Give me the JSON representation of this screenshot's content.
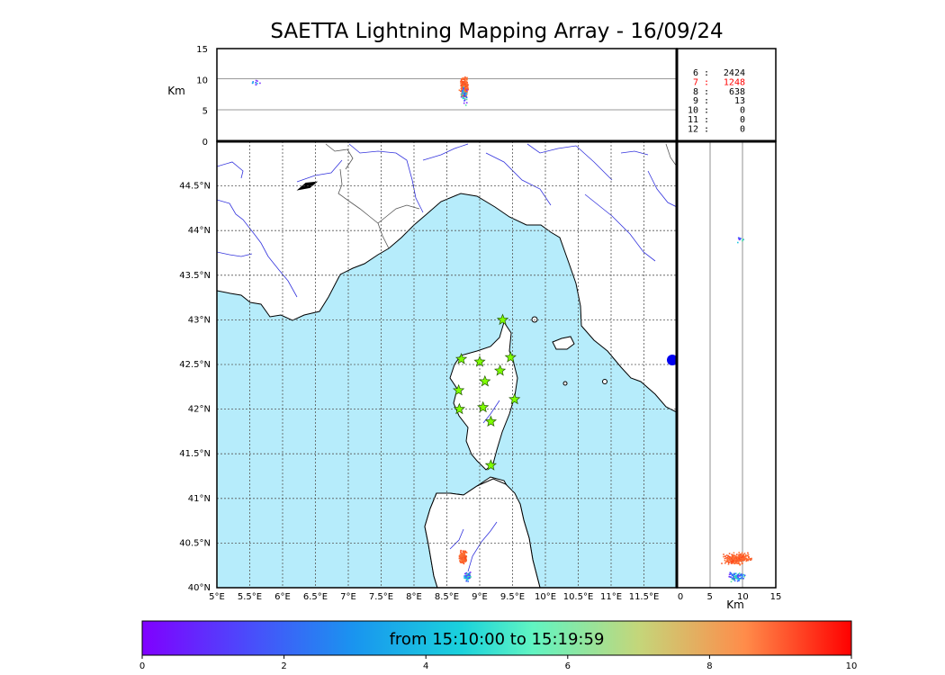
{
  "title": "SAETTA Lightning Mapping Array - 16/09/24",
  "colorbar": {
    "label": "from 15:10:00 to 15:19:59",
    "ticks": [
      "0",
      "2",
      "4",
      "6",
      "8",
      "10"
    ],
    "min": 0,
    "max": 10
  },
  "altitude_axis": {
    "unit": "Km",
    "ticks": [
      "0",
      "5",
      "10",
      "15"
    ]
  },
  "lon_ticks": [
    "5°E",
    "5.5°E",
    "6°E",
    "6.5°E",
    "7°E",
    "7.5°E",
    "8°E",
    "8.5°E",
    "9°E",
    "9.5°E",
    "10°E",
    "10.5°E",
    "11°E",
    "11.5°E"
  ],
  "lat_ticks": [
    "40°N",
    "40.5°N",
    "41°N",
    "41.5°N",
    "42°N",
    "42.5°N",
    "43°N",
    "43.5°N",
    "44°N",
    "44.5°N"
  ],
  "lon_range": [
    5,
    12
  ],
  "lat_range": [
    40,
    45
  ],
  "alt_range": [
    0,
    15
  ],
  "station_counts": [
    {
      "stations": "6",
      "count": "2424",
      "color": "#000000"
    },
    {
      "stations": "7",
      "count": "1248",
      "color": "#ff0000"
    },
    {
      "stations": "8",
      "count": "638",
      "color": "#000000"
    },
    {
      "stations": "9",
      "count": "13",
      "color": "#000000"
    },
    {
      "stations": "10",
      "count": "0",
      "color": "#000000"
    },
    {
      "stations": "11",
      "count": "0",
      "color": "#000000"
    },
    {
      "stations": "12",
      "count": "0",
      "color": "#000000"
    }
  ],
  "stations": [
    {
      "lon": 9.35,
      "lat": 43.0
    },
    {
      "lon": 8.72,
      "lat": 42.56
    },
    {
      "lon": 9.0,
      "lat": 42.53
    },
    {
      "lon": 9.47,
      "lat": 42.58
    },
    {
      "lon": 9.31,
      "lat": 42.43
    },
    {
      "lon": 9.08,
      "lat": 42.31
    },
    {
      "lon": 8.68,
      "lat": 42.21
    },
    {
      "lon": 9.53,
      "lat": 42.11
    },
    {
      "lon": 9.05,
      "lat": 42.02
    },
    {
      "lon": 8.69,
      "lat": 42.0
    },
    {
      "lon": 9.17,
      "lat": 41.86
    },
    {
      "lon": 9.17,
      "lat": 41.37
    }
  ],
  "colors": {
    "sea": "#b6ecfb",
    "station": "#7fff00",
    "rivers": "#3333dd"
  }
}
